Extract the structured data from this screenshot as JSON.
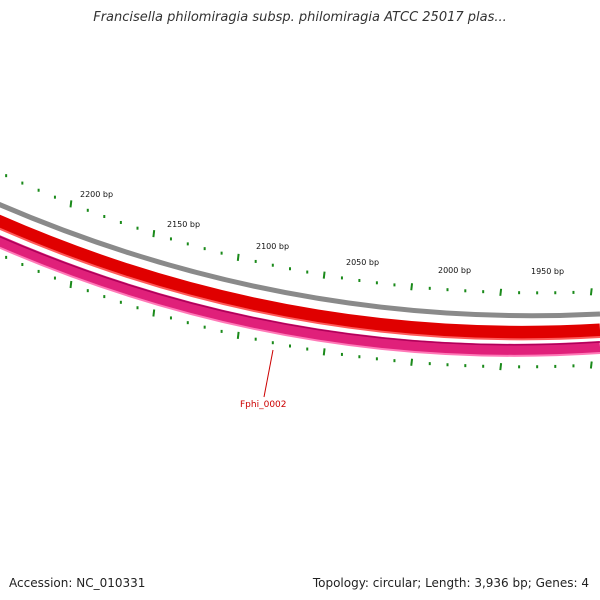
{
  "title": "Francisella philomiragia subsp. philomiragia ATCC 25017 plas...",
  "footer": {
    "accession": "Accession: NC_010331",
    "summary": "Topology: circular; Length: 3,936 bp; Genes: 4"
  },
  "map": {
    "tick_labels": [
      "2200 bp",
      "2150 bp",
      "2100 bp",
      "2050 bp",
      "2000 bp",
      "1950 bp"
    ],
    "gene_label": "Fphi_0002",
    "colors": {
      "backbone": "#8a8a8a",
      "forward_strand": "#e00000",
      "reverse_strand": "#e0207a",
      "ticks": "#1a8a1a",
      "gene_label": "#cc0000"
    }
  }
}
